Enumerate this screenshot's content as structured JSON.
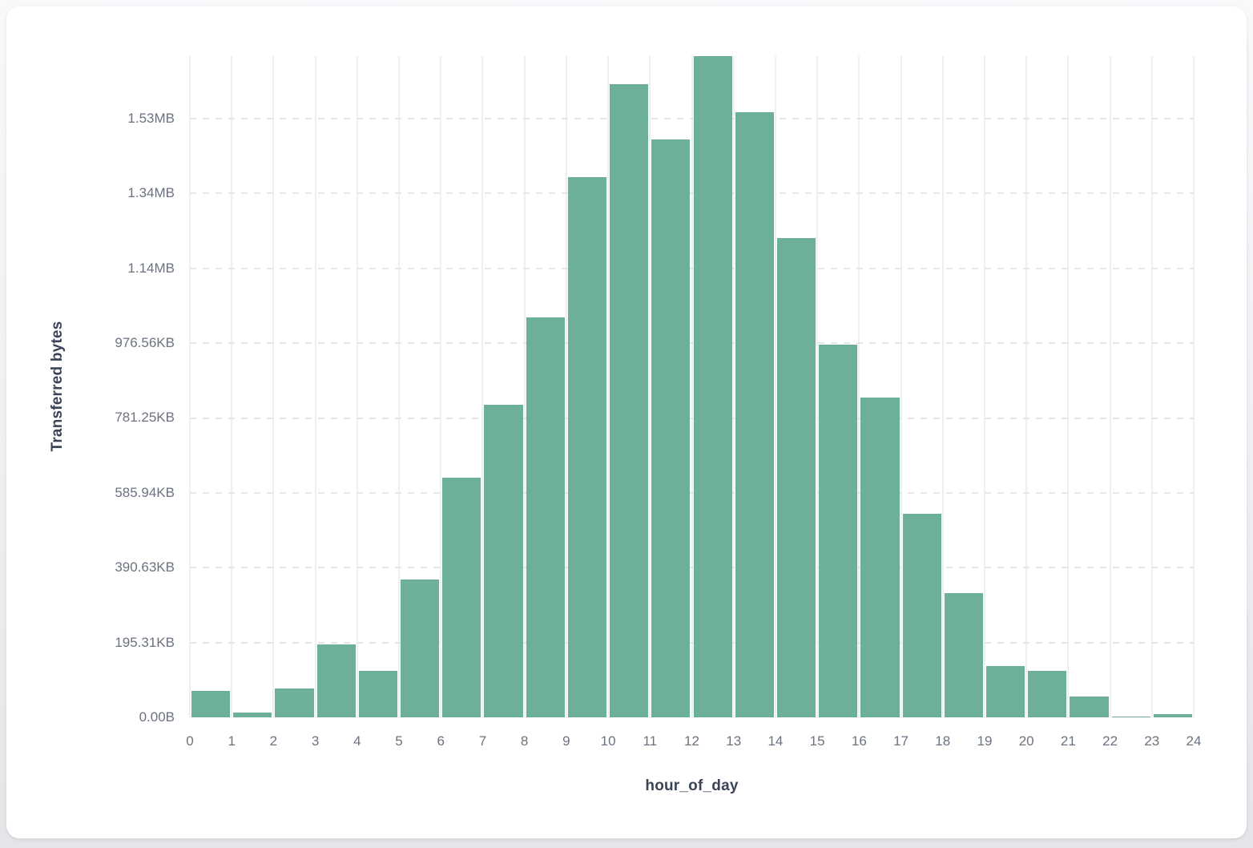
{
  "chart_data": {
    "type": "bar",
    "title": "",
    "xlabel": "hour_of_day",
    "ylabel": "Transferred bytes",
    "x_ticks": [
      "0",
      "1",
      "2",
      "3",
      "4",
      "5",
      "6",
      "7",
      "8",
      "9",
      "10",
      "11",
      "12",
      "13",
      "14",
      "15",
      "16",
      "17",
      "18",
      "19",
      "20",
      "21",
      "22",
      "23",
      "24"
    ],
    "hours": [
      0,
      1,
      2,
      3,
      4,
      5,
      6,
      7,
      8,
      9,
      10,
      11,
      12,
      13,
      14,
      15,
      16,
      17,
      18,
      19,
      20,
      21,
      22,
      23
    ],
    "values_bytes": [
      70700,
      12900,
      77200,
      195100,
      124300,
      368700,
      640900,
      836000,
      1069700,
      1442600,
      1691300,
      1543400,
      1766300,
      1616300,
      1281900,
      996800,
      855300,
      544500,
      332300,
      137200,
      124300,
      55700,
      3200,
      9600
    ],
    "y_ticks": [
      {
        "label": "0.00B",
        "bytes": 0
      },
      {
        "label": "195.31KB",
        "bytes": 200000
      },
      {
        "label": "390.63KB",
        "bytes": 400000
      },
      {
        "label": "585.94KB",
        "bytes": 600000
      },
      {
        "label": "781.25KB",
        "bytes": 800000
      },
      {
        "label": "976.56KB",
        "bytes": 1000000
      },
      {
        "label": "1.14MB",
        "bytes": 1200000
      },
      {
        "label": "1.34MB",
        "bytes": 1400000
      },
      {
        "label": "1.53MB",
        "bytes": 1600000
      }
    ],
    "ylim_bytes": [
      0,
      1767000
    ],
    "xlim": [
      0,
      24
    ],
    "grid": {
      "vertical": "solid",
      "horizontal": "dashed"
    },
    "legend": "none",
    "colors": {
      "bar": "#6cb09a",
      "vertical_gridline": "#edeff3",
      "horizontal_gridline": "#e3e6eb",
      "tick_label": "#6b7280",
      "axis_title": "#3b4456",
      "card_background": "#ffffff",
      "page_background": "#eceef1"
    }
  }
}
